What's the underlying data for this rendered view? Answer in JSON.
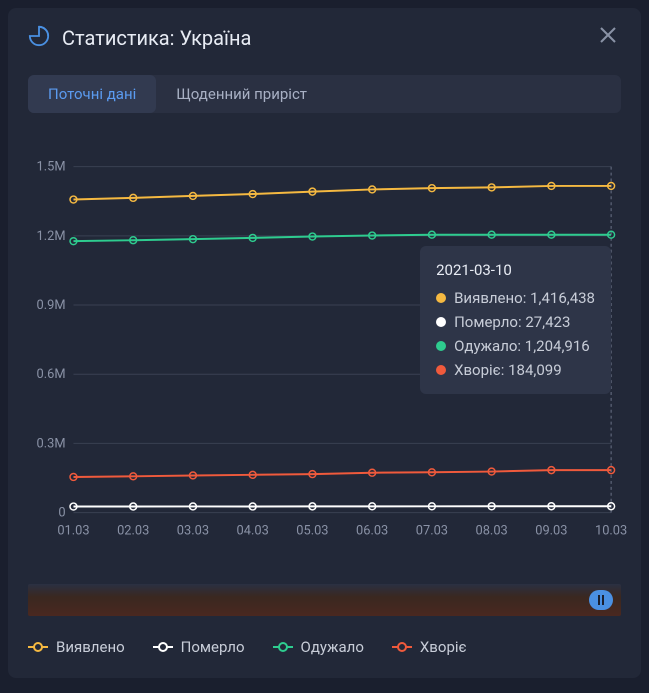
{
  "header": {
    "title": "Статистика: Україна"
  },
  "tabs": [
    {
      "label": "Поточні дані",
      "active": true
    },
    {
      "label": "Щоденний приріст",
      "active": false
    }
  ],
  "chart": {
    "type": "line",
    "background_color": "#222838",
    "grid_color": "#3a4052",
    "axis_label_color": "#8a92a6",
    "axis_fontsize": 13,
    "x_labels": [
      "01.03",
      "02.03",
      "03.03",
      "04.03",
      "05.03",
      "06.03",
      "07.03",
      "08.03",
      "09.03",
      "10.03"
    ],
    "y_ticks": [
      0,
      300000,
      600000,
      900000,
      1200000,
      1500000
    ],
    "y_tick_labels": [
      "0",
      "0.3M",
      "0.6M",
      "0.9M",
      "1.2M",
      "1.5M"
    ],
    "ylim": [
      0,
      1500000
    ],
    "line_width": 2,
    "marker_style": "circle",
    "marker_radius": 3.5,
    "cursor_x_index": 9,
    "series": [
      {
        "name": "Виявлено",
        "color": "#f5b941",
        "values": [
          1357470,
          1364705,
          1373139,
          1381273,
          1391741,
          1401228,
          1406800,
          1410061,
          1416438,
          1416438
        ]
      },
      {
        "name": "Померло",
        "color": "#ffffff",
        "values": [
          26212,
          26397,
          26591,
          26470,
          26877,
          27058,
          27204,
          27306,
          27423,
          27423
        ]
      },
      {
        "name": "Одужало",
        "color": "#2ecc8f",
        "values": [
          1176918,
          1181019,
          1185635,
          1191063,
          1197046,
          1201371,
          1204916,
          1204916,
          1204916,
          1204916
        ]
      },
      {
        "name": "Хворіє",
        "color": "#f05a3c",
        "values": [
          154340,
          157289,
          160913,
          163740,
          166818,
          172799,
          174680,
          177839,
          184099,
          184099
        ]
      }
    ]
  },
  "tooltip": {
    "date": "2021-03-10",
    "rows": [
      {
        "label": "Виявлено",
        "value": "1,416,438",
        "color": "#f5b941"
      },
      {
        "label": "Померло",
        "value": "27,423",
        "color": "#ffffff"
      },
      {
        "label": "Одужало",
        "value": "1,204,916",
        "color": "#2ecc8f"
      },
      {
        "label": "Хворіє",
        "value": "184,099",
        "color": "#f05a3c"
      }
    ]
  },
  "legend": [
    {
      "label": "Виявлено",
      "color": "#f5b941"
    },
    {
      "label": "Померло",
      "color": "#ffffff"
    },
    {
      "label": "Одужало",
      "color": "#2ecc8f"
    },
    {
      "label": "Хворіє",
      "color": "#f05a3c"
    }
  ]
}
